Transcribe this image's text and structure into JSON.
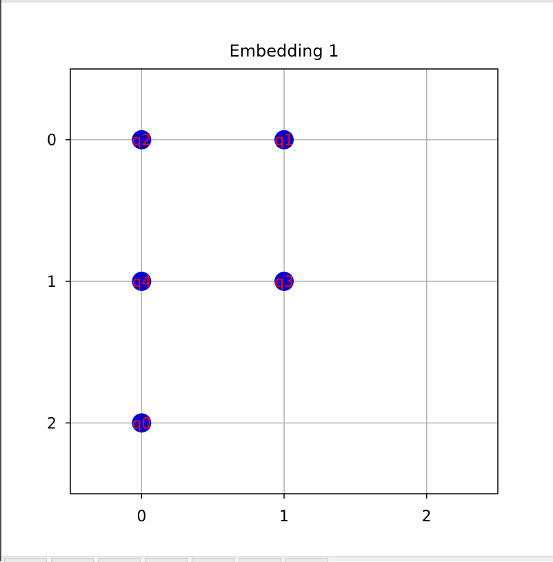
{
  "chart_data": {
    "type": "scatter",
    "title": "Embedding 1",
    "xlabel": "",
    "ylabel": "",
    "xlim": [
      -0.5,
      2.5
    ],
    "ylim": [
      2.5,
      -0.5
    ],
    "y_inverted": true,
    "xticks": [
      "0",
      "1",
      "2"
    ],
    "yticks": [
      "0",
      "1",
      "2"
    ],
    "grid": true,
    "marker_color": "#0000cc",
    "label_color": "#ff0000",
    "points": [
      {
        "x": 0,
        "y": 0,
        "label": "q2"
      },
      {
        "x": 1,
        "y": 0,
        "label": "q1"
      },
      {
        "x": 0,
        "y": 1,
        "label": "q4"
      },
      {
        "x": 1,
        "y": 1,
        "label": "q3"
      },
      {
        "x": 0,
        "y": 2,
        "label": "q0"
      }
    ]
  },
  "tabs": [
    "",
    "",
    "",
    "",
    "",
    "",
    ""
  ]
}
